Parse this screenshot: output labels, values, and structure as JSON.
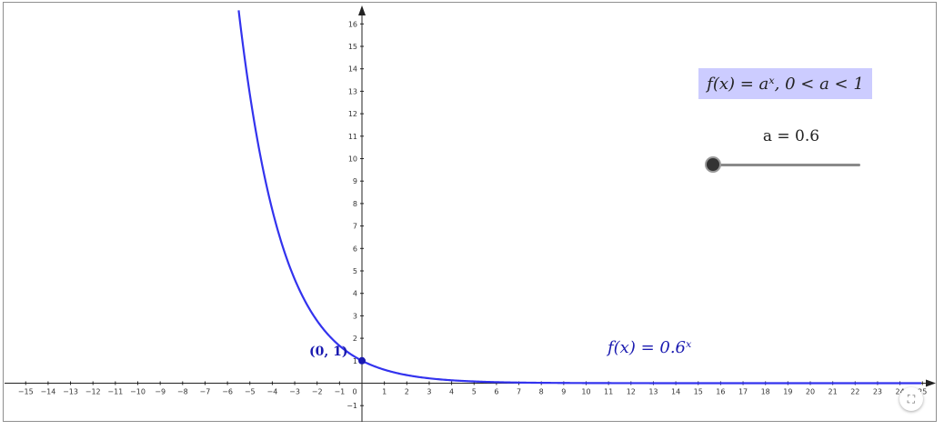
{
  "formula": "f(x) = aˣ, 0 < a < 1",
  "slider": {
    "label": "a = 0.6",
    "value": 0.6,
    "track_color": "#8a8a8a",
    "thumb_color": "#333333"
  },
  "point_label": "(0, 1)",
  "curve_label": "f(x) = 0.6ˣ",
  "fullscreen_icon": "fullscreen-icon",
  "chart_data": {
    "type": "line",
    "function": "0.6^x",
    "series": [
      {
        "color": "#3333ee",
        "x": [
          -5.65,
          -5.5,
          -5,
          -4.5,
          -4,
          -3.5,
          -3,
          -2.5,
          -2,
          -1.5,
          -1,
          -0.5,
          0,
          0.5,
          1,
          2,
          3,
          4,
          5,
          6,
          8,
          10,
          15,
          20,
          25
        ],
        "y": [
          17.99,
          16.6,
          12.86,
          9.96,
          7.72,
          5.98,
          4.63,
          3.59,
          2.78,
          2.15,
          1.67,
          1.29,
          1,
          0.77,
          0.6,
          0.36,
          0.22,
          0.13,
          0.08,
          0.05,
          0.02,
          0.006,
          0.0005,
          0,
          0
        ]
      }
    ],
    "point": {
      "x": 0,
      "y": 1,
      "color": "#1a1ab0"
    },
    "xlim": [
      -15.5,
      25
    ],
    "ylim": [
      -1.5,
      16.5
    ],
    "x_ticks": [
      -15,
      -14,
      -13,
      -12,
      -11,
      -10,
      -9,
      -8,
      -7,
      -6,
      -5,
      -4,
      -3,
      -2,
      -1,
      0,
      1,
      2,
      3,
      4,
      5,
      6,
      7,
      8,
      9,
      10,
      11,
      12,
      13,
      14,
      15,
      16,
      17,
      18,
      19,
      20,
      21,
      22,
      23,
      24,
      25
    ],
    "y_ticks": [
      -1,
      1,
      2,
      3,
      4,
      5,
      6,
      7,
      8,
      9,
      10,
      11,
      12,
      13,
      14,
      15,
      16
    ],
    "grid": false
  }
}
